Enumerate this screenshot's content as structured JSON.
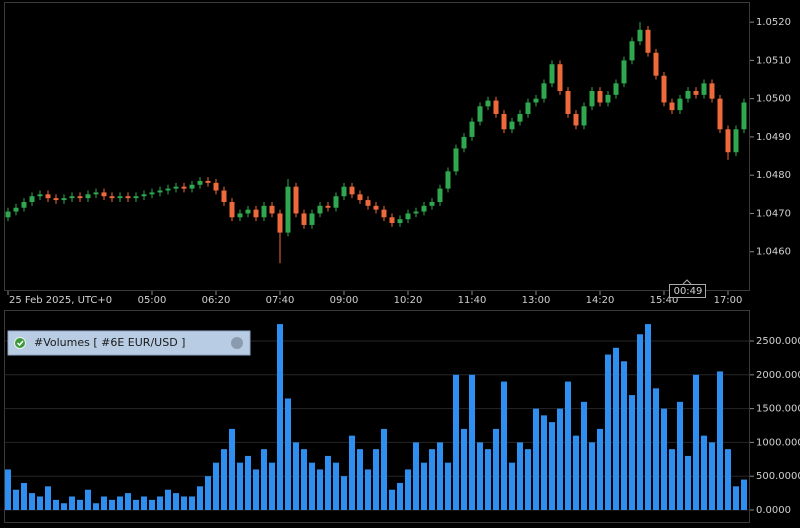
{
  "chart_data": [
    {
      "type": "candlestick",
      "open": [
        1.0469,
        1.04705,
        1.04715,
        1.0473,
        1.04745,
        1.0475,
        1.0474,
        1.04735,
        1.0474,
        1.04745,
        1.0474,
        1.0475,
        1.04755,
        1.04745,
        1.0474,
        1.04745,
        1.0474,
        1.04745,
        1.0475,
        1.04755,
        1.0476,
        1.04765,
        1.0477,
        1.04765,
        1.04775,
        1.04785,
        1.0478,
        1.0476,
        1.0473,
        1.0469,
        1.047,
        1.0471,
        1.0469,
        1.0472,
        1.047,
        1.0465,
        1.0477,
        1.047,
        1.0467,
        1.047,
        1.0472,
        1.04715,
        1.04745,
        1.0477,
        1.0475,
        1.04735,
        1.0472,
        1.0471,
        1.0469,
        1.04675,
        1.04685,
        1.047,
        1.04705,
        1.0472,
        1.0473,
        1.04765,
        1.0481,
        1.0487,
        1.049,
        1.0494,
        1.0498,
        1.04995,
        1.0496,
        1.0492,
        1.0494,
        1.0496,
        1.0499,
        1.05,
        1.0504,
        1.0509,
        1.0502,
        1.0496,
        1.0493,
        1.0498,
        1.0502,
        1.0499,
        1.0501,
        1.0504,
        1.051,
        1.0515,
        1.0518,
        1.0512,
        1.0506,
        1.0499,
        1.0497,
        1.05,
        1.0502,
        1.0501,
        1.0504,
        1.05,
        1.0492,
        1.0486,
        1.0492
      ],
      "high": [
        1.04715,
        1.04725,
        1.0474,
        1.04755,
        1.0476,
        1.0476,
        1.0475,
        1.0475,
        1.04755,
        1.04755,
        1.0476,
        1.04765,
        1.04765,
        1.04755,
        1.04755,
        1.04755,
        1.04755,
        1.0476,
        1.04765,
        1.0477,
        1.04775,
        1.0478,
        1.0478,
        1.04785,
        1.04795,
        1.04795,
        1.0479,
        1.0477,
        1.0474,
        1.0471,
        1.0472,
        1.0472,
        1.0473,
        1.0473,
        1.0471,
        1.0479,
        1.0478,
        1.0471,
        1.0471,
        1.0473,
        1.0473,
        1.04755,
        1.0478,
        1.0478,
        1.0476,
        1.04745,
        1.0473,
        1.0472,
        1.047,
        1.04695,
        1.0471,
        1.04715,
        1.0473,
        1.0474,
        1.04775,
        1.0482,
        1.0488,
        1.0491,
        1.0495,
        1.0499,
        1.05005,
        1.05005,
        1.0497,
        1.0495,
        1.0497,
        1.05,
        1.0501,
        1.0505,
        1.051,
        1.051,
        1.0503,
        1.0497,
        1.0499,
        1.0503,
        1.0503,
        1.0502,
        1.0505,
        1.0511,
        1.0516,
        1.052,
        1.0519,
        1.0513,
        1.0507,
        1.05,
        1.0501,
        1.0503,
        1.0503,
        1.0505,
        1.0505,
        1.0501,
        1.0493,
        1.0493,
        1.05
      ],
      "low": [
        1.0468,
        1.04695,
        1.04705,
        1.0472,
        1.04735,
        1.0473,
        1.04725,
        1.04725,
        1.0473,
        1.0473,
        1.0473,
        1.0474,
        1.04735,
        1.0473,
        1.0473,
        1.0473,
        1.0473,
        1.04735,
        1.0474,
        1.04745,
        1.0475,
        1.04755,
        1.04755,
        1.04755,
        1.04765,
        1.0477,
        1.0475,
        1.0472,
        1.0468,
        1.0468,
        1.0469,
        1.0468,
        1.0468,
        1.0469,
        1.0457,
        1.0464,
        1.0469,
        1.0466,
        1.0466,
        1.0469,
        1.04705,
        1.04705,
        1.04735,
        1.0474,
        1.04725,
        1.0471,
        1.047,
        1.0468,
        1.04665,
        1.04665,
        1.04675,
        1.0469,
        1.04695,
        1.0471,
        1.0472,
        1.04755,
        1.048,
        1.0486,
        1.0489,
        1.0493,
        1.0497,
        1.0495,
        1.0491,
        1.0491,
        1.0493,
        1.0495,
        1.0498,
        1.0499,
        1.0503,
        1.0501,
        1.0495,
        1.0492,
        1.0492,
        1.0497,
        1.0498,
        1.0498,
        1.05,
        1.0503,
        1.0509,
        1.0514,
        1.0511,
        1.0505,
        1.0498,
        1.0496,
        1.0496,
        1.0499,
        1.05,
        1.05,
        1.0499,
        1.0491,
        1.0484,
        1.0485,
        1.0491
      ],
      "close": [
        1.04705,
        1.04715,
        1.0473,
        1.04745,
        1.0475,
        1.0474,
        1.04735,
        1.0474,
        1.04745,
        1.0474,
        1.0475,
        1.04755,
        1.04745,
        1.0474,
        1.04745,
        1.0474,
        1.04745,
        1.0475,
        1.04755,
        1.0476,
        1.04765,
        1.0477,
        1.04765,
        1.04775,
        1.04785,
        1.0478,
        1.0476,
        1.0473,
        1.0469,
        1.047,
        1.0471,
        1.0469,
        1.0472,
        1.047,
        1.0465,
        1.0477,
        1.047,
        1.0467,
        1.047,
        1.0472,
        1.04715,
        1.04745,
        1.0477,
        1.0475,
        1.04735,
        1.0472,
        1.0471,
        1.0469,
        1.04675,
        1.04685,
        1.047,
        1.04705,
        1.0472,
        1.0473,
        1.04765,
        1.0481,
        1.0487,
        1.049,
        1.0494,
        1.0498,
        1.04995,
        1.0496,
        1.0492,
        1.0494,
        1.0496,
        1.0499,
        1.05,
        1.0504,
        1.0509,
        1.0502,
        1.0496,
        1.0493,
        1.0498,
        1.0502,
        1.0499,
        1.0501,
        1.0504,
        1.051,
        1.0515,
        1.0518,
        1.0512,
        1.0506,
        1.0499,
        1.0497,
        1.05,
        1.0502,
        1.0501,
        1.0504,
        1.05,
        1.0492,
        1.0486,
        1.0492,
        1.0499
      ],
      "up_color": "#2fa84f",
      "down_color": "#ee6a3c",
      "ylim": [
        1.045,
        1.0525
      ],
      "yticks": [
        {
          "value": 1.046,
          "label": "1.0460"
        },
        {
          "value": 1.047,
          "label": "1.0470"
        },
        {
          "value": 1.048,
          "label": "1.0480"
        },
        {
          "value": 1.049,
          "label": "1.0490"
        },
        {
          "value": 1.05,
          "label": "1.0500"
        },
        {
          "value": 1.051,
          "label": "1.0510"
        },
        {
          "value": 1.052,
          "label": "1.0520"
        }
      ],
      "xticks": [
        {
          "value": 0,
          "label": "25 Feb 2025, UTC+0"
        },
        {
          "value": 18,
          "label": "05:00"
        },
        {
          "value": 26,
          "label": "06:20"
        },
        {
          "value": 34,
          "label": "07:40"
        },
        {
          "value": 42,
          "label": "09:00"
        },
        {
          "value": 50,
          "label": "10:20"
        },
        {
          "value": 58,
          "label": "11:40"
        },
        {
          "value": 66,
          "label": "13:00"
        },
        {
          "value": 74,
          "label": "14:20"
        },
        {
          "value": 82,
          "label": "15:40"
        },
        {
          "value": 90,
          "label": "17:00"
        }
      ],
      "countdown": "00:49"
    },
    {
      "type": "bar",
      "title": "#Volumes [ #6E EUR/USD ]",
      "values": [
        600,
        300,
        400,
        250,
        200,
        350,
        150,
        100,
        200,
        150,
        300,
        100,
        200,
        150,
        200,
        250,
        150,
        200,
        150,
        200,
        300,
        250,
        200,
        200,
        350,
        500,
        700,
        900,
        1200,
        700,
        800,
        600,
        900,
        700,
        2750,
        1650,
        1000,
        900,
        700,
        600,
        800,
        700,
        500,
        1100,
        900,
        600,
        900,
        1200,
        300,
        400,
        600,
        1000,
        700,
        900,
        1000,
        700,
        2000,
        1200,
        2000,
        1000,
        900,
        1200,
        1900,
        700,
        1000,
        900,
        1500,
        1400,
        1300,
        1500,
        1900,
        1100,
        1600,
        1000,
        1200,
        2300,
        2400,
        2200,
        1700,
        2600,
        2750,
        1800,
        1500,
        900,
        1600,
        800,
        2000,
        1100,
        1000,
        2050,
        900,
        350,
        450
      ],
      "color": "#2f8ff0",
      "ylim": [
        0,
        2870
      ],
      "grid": true,
      "yticks": [
        {
          "value": 0,
          "label": "0.0000"
        },
        {
          "value": 500,
          "label": "500.0000"
        },
        {
          "value": 1000,
          "label": "1000.0000"
        },
        {
          "value": 1500,
          "label": "1500.0000"
        },
        {
          "value": 2000,
          "label": "2000.0000"
        },
        {
          "value": 2500,
          "label": "2500.0000"
        }
      ]
    }
  ]
}
